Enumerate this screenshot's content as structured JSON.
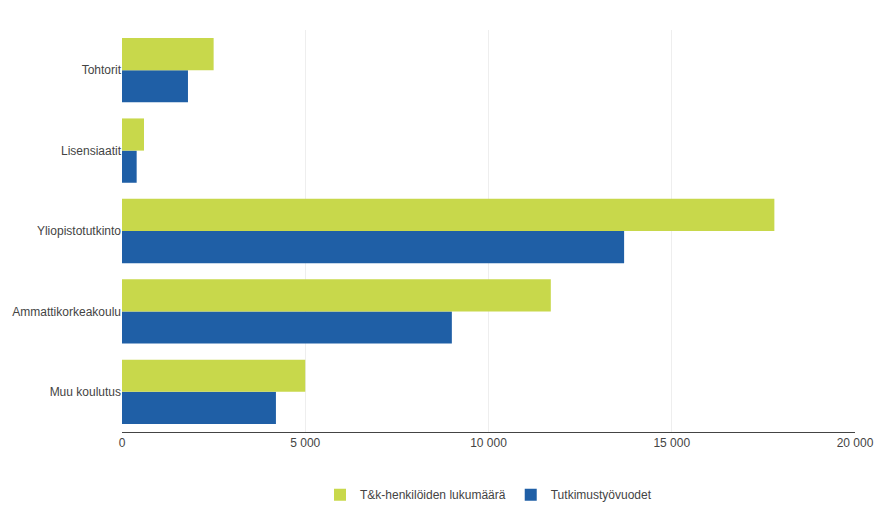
{
  "chart_data": {
    "type": "bar",
    "orientation": "horizontal",
    "categories": [
      "Muu koulutus",
      "Ammattikorkeakoulu",
      "Yliopistotutkinto",
      "Lisensiaatit",
      "Tohtorit"
    ],
    "series": [
      {
        "name": "T&k-henkilöiden lukumäärä",
        "color": "#c8d84b",
        "values": [
          5000,
          11700,
          17800,
          600,
          2500
        ]
      },
      {
        "name": "Tutkimustyövuodet",
        "color": "#1f5fa6",
        "values": [
          4200,
          9000,
          13700,
          400,
          1800
        ]
      }
    ],
    "xlim": [
      0,
      20000
    ],
    "xticks": [
      0,
      {
        "value": 5000,
        "label": "5 000"
      },
      {
        "value": 10000,
        "label": "10 000"
      },
      {
        "value": 15000,
        "label": "15 000"
      },
      {
        "value": 20000,
        "label": "20 000"
      }
    ],
    "grid": true,
    "legend": "bottom"
  }
}
